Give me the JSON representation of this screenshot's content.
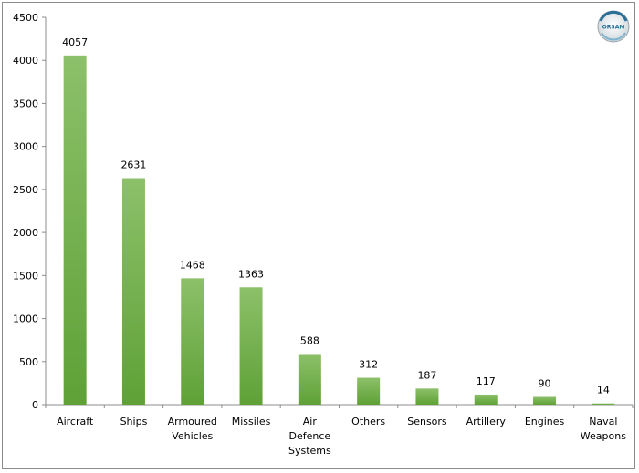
{
  "chart_data": {
    "type": "bar",
    "title": "",
    "xlabel": "",
    "ylabel": "",
    "ylim": [
      0,
      4500
    ],
    "ytick_step": 500,
    "grid": false,
    "legend": "none",
    "categories": [
      [
        "Aircraft"
      ],
      [
        "Ships"
      ],
      [
        "Armoured",
        "Vehicles"
      ],
      [
        "Missiles"
      ],
      [
        "Air",
        "Defence",
        "Systems"
      ],
      [
        "Others"
      ],
      [
        "Sensors"
      ],
      [
        "Artillery"
      ],
      [
        "Engines"
      ],
      [
        "Naval",
        "Weapons"
      ]
    ],
    "values": [
      4057,
      2631,
      1468,
      1363,
      588,
      312,
      187,
      117,
      90,
      14
    ],
    "bar_color_top": "#8cc06a",
    "bar_color_bottom": "#5fa136"
  },
  "logo": {
    "text": "ORSAM",
    "color": "#2a6f97"
  }
}
